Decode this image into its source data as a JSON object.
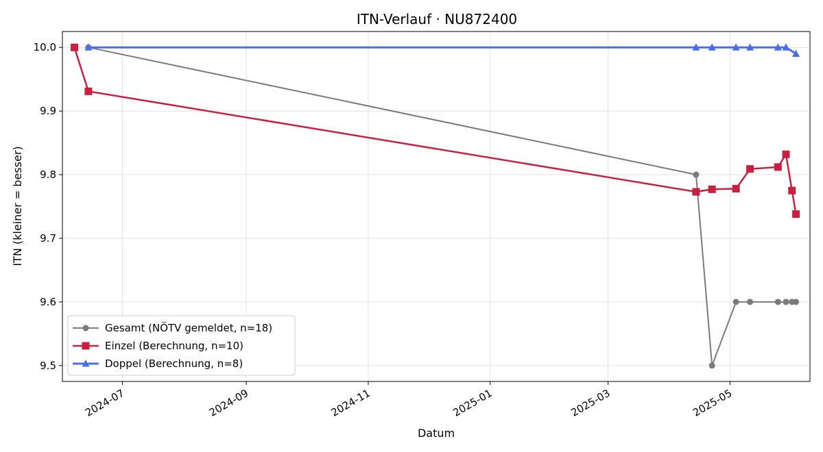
{
  "chart_data": {
    "type": "line",
    "title": "ITN-Verlauf · NU872400",
    "xlabel": "Datum",
    "ylabel": "ITN  (kleiner = besser)",
    "xlim": [
      "2024-06-01",
      "2025-06-10"
    ],
    "ylim": [
      9.475,
      10.025
    ],
    "x_ticks": [
      "2024-07-01",
      "2024-09-01",
      "2024-11-01",
      "2025-01-01",
      "2025-03-01",
      "2025-05-01"
    ],
    "x_tick_labels": [
      "2024-07",
      "2024-09",
      "2024-11",
      "2025-01",
      "2025-03",
      "2025-05"
    ],
    "y_ticks": [
      9.5,
      9.6,
      9.7,
      9.8,
      9.9,
      10.0
    ],
    "y_tick_labels": [
      "9.5",
      "9.6",
      "9.7",
      "9.8",
      "9.9",
      "10.0"
    ],
    "grid": true,
    "legend_position": "lower-left",
    "series": [
      {
        "name": "Gesamt (NÖTV gemeldet, n=18)",
        "color": "#7a7a7a",
        "marker": "circle",
        "x": [
          "2024-06-14",
          "2025-04-14",
          "2025-04-22",
          "2025-05-04",
          "2025-05-11",
          "2025-05-25",
          "2025-05-29",
          "2025-06-01",
          "2025-06-03"
        ],
        "values": [
          10.0,
          9.8,
          9.5,
          9.6,
          9.6,
          9.6,
          9.6,
          9.6,
          9.6
        ]
      },
      {
        "name": "Einzel (Berechnung, n=10)",
        "color": "#c8203e",
        "marker": "square",
        "x": [
          "2024-06-07",
          "2024-06-14",
          "2025-04-14",
          "2025-04-22",
          "2025-05-04",
          "2025-05-11",
          "2025-05-25",
          "2025-05-29",
          "2025-06-01",
          "2025-06-03"
        ],
        "values": [
          10.0,
          9.931,
          9.773,
          9.777,
          9.778,
          9.809,
          9.812,
          9.832,
          9.775,
          9.738
        ]
      },
      {
        "name": "Doppel (Berechnung, n=8)",
        "color": "#4a6ee8",
        "marker": "triangle",
        "x": [
          "2024-06-14",
          "2025-04-14",
          "2025-04-22",
          "2025-05-04",
          "2025-05-11",
          "2025-05-25",
          "2025-05-29",
          "2025-06-03"
        ],
        "values": [
          10.0,
          10.0,
          10.0,
          10.0,
          10.0,
          10.0,
          10.0,
          9.99
        ]
      }
    ]
  }
}
